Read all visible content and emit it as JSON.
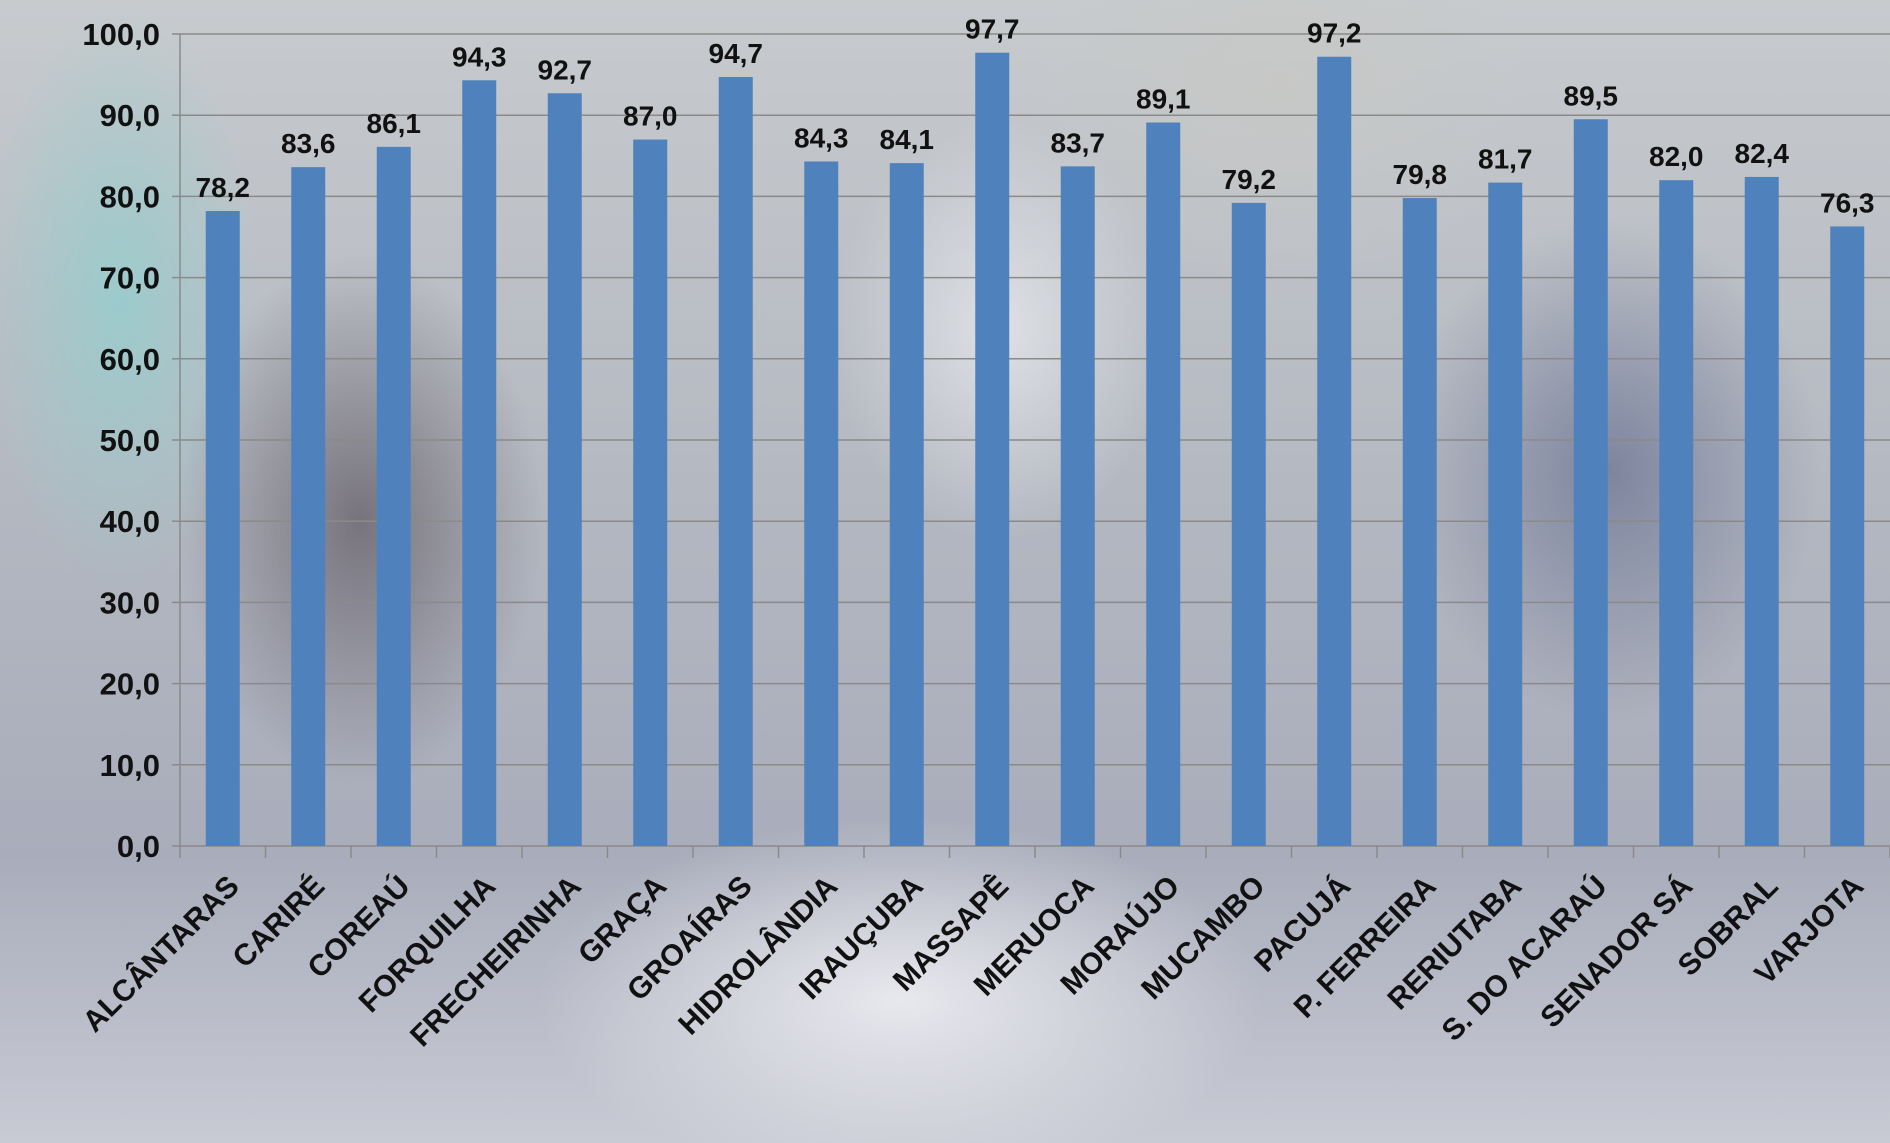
{
  "chart_data": {
    "type": "bar",
    "title": "",
    "xlabel": "",
    "ylabel": "",
    "ylim": [
      0,
      100
    ],
    "yticks": [
      "0,0",
      "10,0",
      "20,0",
      "30,0",
      "40,0",
      "50,0",
      "60,0",
      "70,0",
      "80,0",
      "90,0",
      "100,0"
    ],
    "grid": true,
    "legend": "none",
    "bar_color": "#4f81bd",
    "categories": [
      "ALCÂNTARAS",
      "CARIRÉ",
      "COREAÚ",
      "FORQUILHA",
      "FRECHEIRINHA",
      "GRAÇA",
      "GROAÍRAS",
      "HIDROLÂNDIA",
      "IRAUÇUBA",
      "MASSAPÊ",
      "MERUOCA",
      "MORAÚJO",
      "MUCAMBO",
      "PACUJÁ",
      "P. FERREIRA",
      "RERIUTABA",
      "S. DO ACARAÚ",
      "SENADOR SÁ",
      "SOBRAL",
      "VARJOTA"
    ],
    "values": [
      78.2,
      83.6,
      86.1,
      94.3,
      92.7,
      87.0,
      94.7,
      84.3,
      84.1,
      97.7,
      83.7,
      89.1,
      79.2,
      97.2,
      79.8,
      81.7,
      89.5,
      82.0,
      82.4,
      76.3
    ],
    "value_labels": [
      "78,2",
      "83,6",
      "86,1",
      "94,3",
      "92,7",
      "87,0",
      "94,7",
      "84,3",
      "84,1",
      "97,7",
      "83,7",
      "89,1",
      "79,2",
      "97,2",
      "79,8",
      "81,7",
      "89,5",
      "82,0",
      "82,4",
      "76,3"
    ]
  }
}
